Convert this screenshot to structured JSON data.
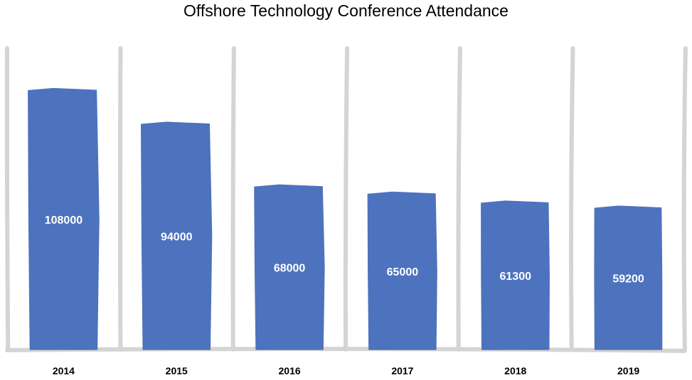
{
  "chart_data": {
    "type": "bar",
    "title": "Offshore Technology Conference Attendance",
    "categories": [
      "2014",
      "2015",
      "2016",
      "2017",
      "2018",
      "2019"
    ],
    "values": [
      108000,
      94000,
      68000,
      65000,
      61300,
      59200
    ],
    "xlabel": "",
    "ylabel": "",
    "ylim": [
      0,
      125000
    ],
    "grid": true,
    "data_labels": true,
    "style": "hand-drawn",
    "colors": {
      "bar": "#4d72be",
      "grid": "#d4d4d4",
      "label": "#ffffff",
      "text": "#000000"
    }
  }
}
